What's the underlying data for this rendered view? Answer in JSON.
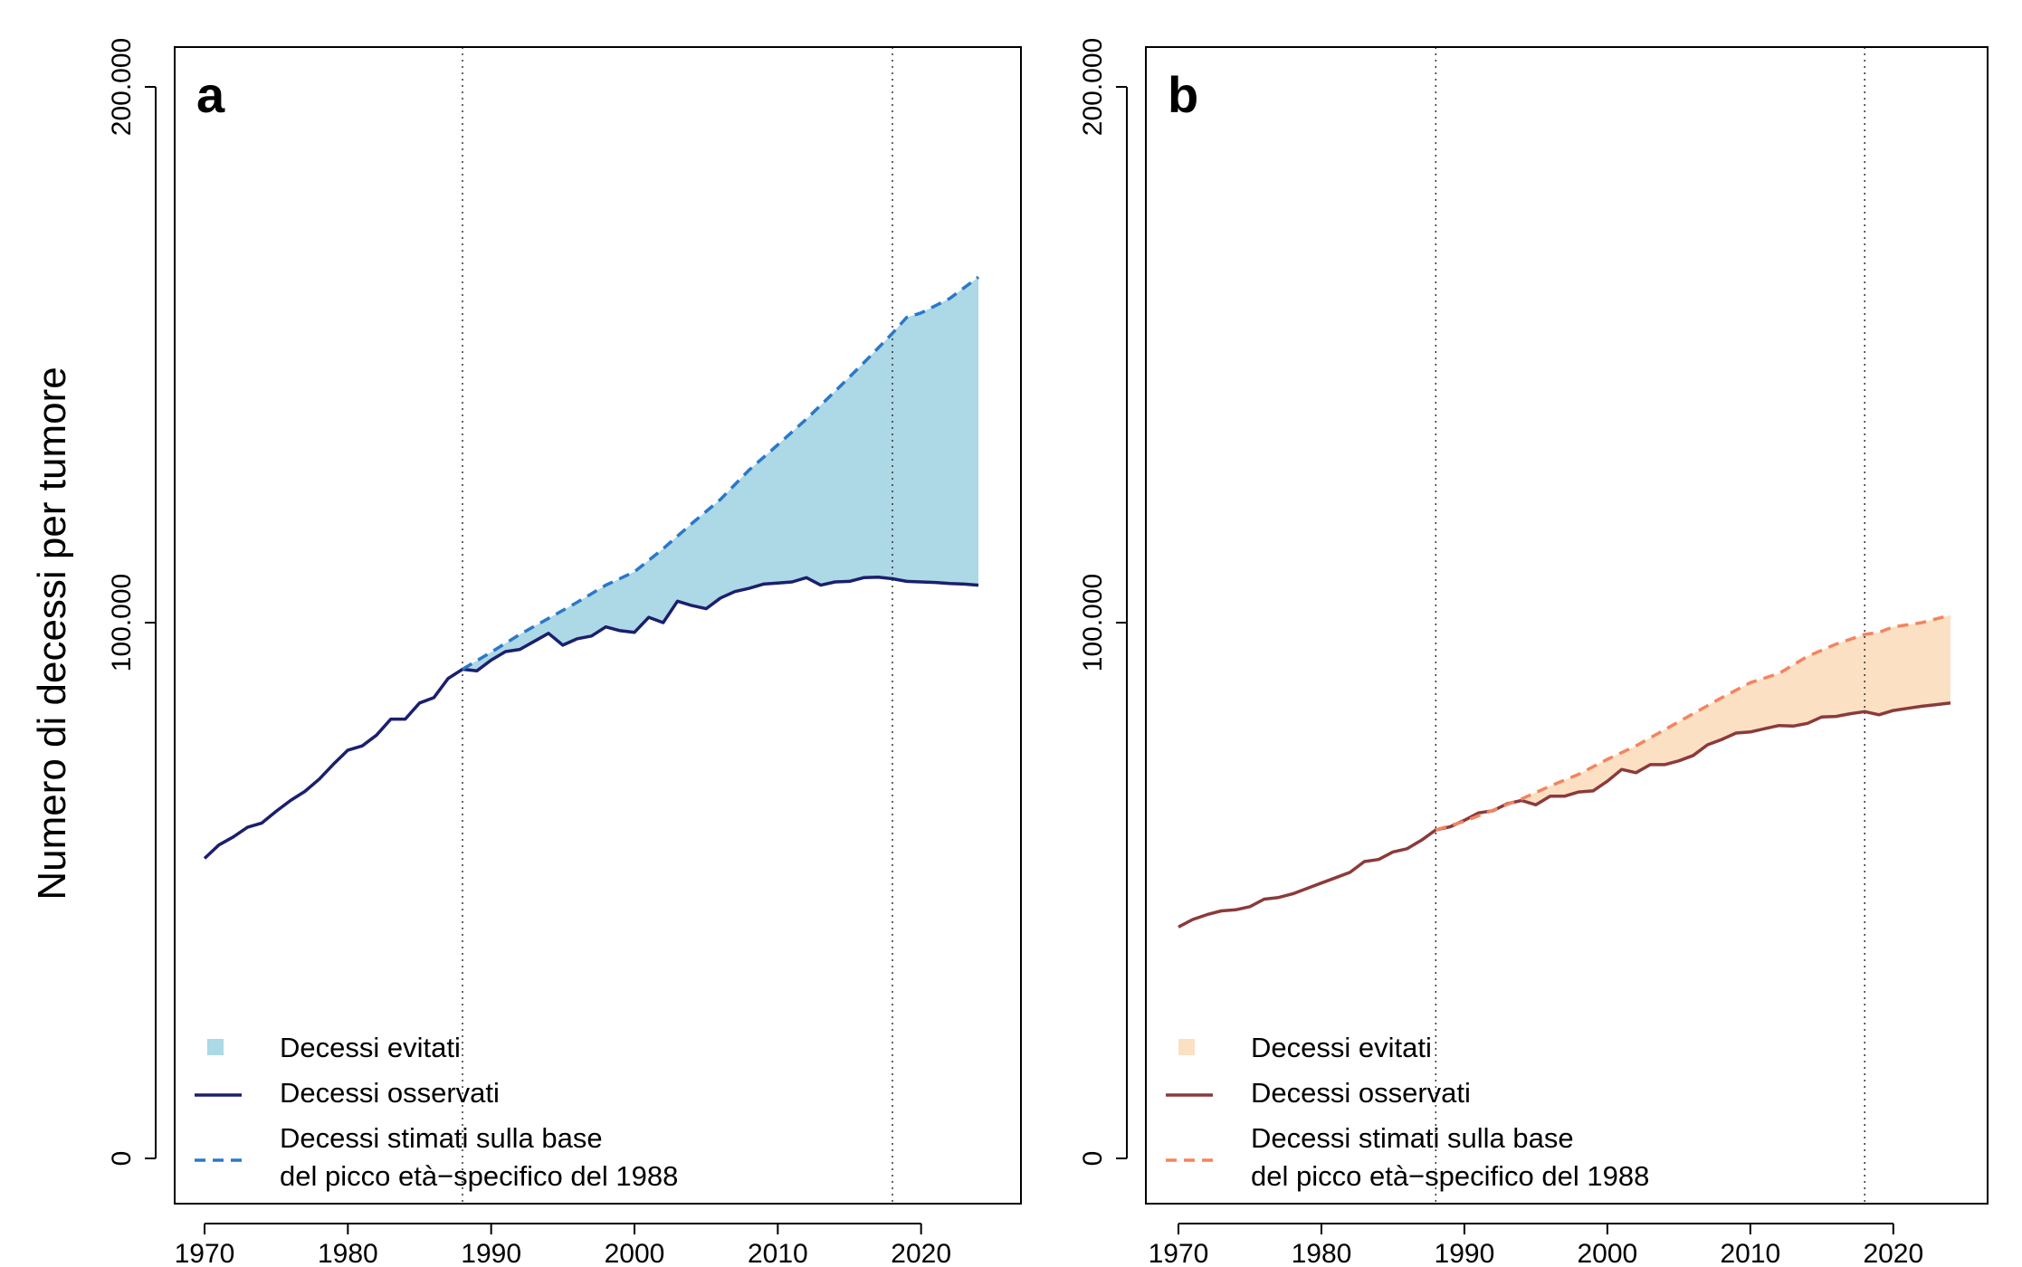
{
  "figure": {
    "ylabel": "Numero di decessi per tumore"
  },
  "chart_data": [
    {
      "panel": "a",
      "type": "line",
      "xlim": [
        1970,
        2024
      ],
      "ylim": [
        0,
        200000
      ],
      "xticks": [
        1970,
        1980,
        1990,
        2000,
        2010,
        2020
      ],
      "xtick_labels": [
        "1970",
        "1980",
        "1990",
        "2000",
        "2010",
        "2020"
      ],
      "yticks": [
        0,
        100000,
        200000
      ],
      "ytick_labels": [
        "0",
        "100.000",
        "200.000"
      ],
      "vlines": [
        1988,
        2018
      ],
      "colors": {
        "observed": "#1b1f6e",
        "estimated": "#2a78c8",
        "fill": "#add8e6"
      },
      "series": [
        {
          "name": "Decessi osservati",
          "style": "solid",
          "x": [
            1970,
            1971,
            1972,
            1973,
            1974,
            1975,
            1976,
            1977,
            1978,
            1979,
            1980,
            1981,
            1982,
            1983,
            1984,
            1985,
            1986,
            1987,
            1988,
            1989,
            1990,
            1991,
            1992,
            1993,
            1994,
            1995,
            1996,
            1997,
            1998,
            1999,
            2000,
            2001,
            2002,
            2003,
            2004,
            2005,
            2006,
            2007,
            2008,
            2009,
            2010,
            2011,
            2012,
            2013,
            2014,
            2015,
            2016,
            2017,
            2018,
            2019,
            2020,
            2021,
            2022,
            2023,
            2024
          ],
          "values": [
            56000,
            58500,
            60000,
            61800,
            62600,
            64800,
            66800,
            68500,
            70800,
            73600,
            76200,
            77000,
            79000,
            82000,
            82000,
            85000,
            86000,
            89600,
            91300,
            91000,
            93000,
            94600,
            95000,
            96500,
            98000,
            95800,
            97000,
            97500,
            99200,
            98500,
            98200,
            101000,
            100000,
            104000,
            103200,
            102600,
            104600,
            105800,
            106400,
            107200,
            107400,
            107600,
            108400,
            107000,
            107600,
            107700,
            108400,
            108500,
            108200,
            107700,
            107600,
            107500,
            107300,
            107200,
            107000
          ]
        },
        {
          "name": "Decessi stimati sulla base del picco età−specifico del 1988",
          "style": "dashed",
          "x": [
            1988,
            1990,
            1992,
            1994,
            1996,
            1998,
            2000,
            2002,
            2004,
            2006,
            2008,
            2010,
            2012,
            2014,
            2016,
            2018,
            2019,
            2020,
            2022,
            2024
          ],
          "values": [
            91300,
            94500,
            97800,
            100800,
            103800,
            107000,
            109500,
            113800,
            118500,
            123000,
            128500,
            133200,
            138000,
            143200,
            148500,
            154000,
            157000,
            157800,
            160500,
            164500
          ]
        }
      ],
      "legend": {
        "position": "bottom-left",
        "items": [
          "Decessi evitati",
          "Decessi osservati",
          "Decessi stimati sulla base",
          "del picco età−specifico del 1988"
        ]
      }
    },
    {
      "panel": "b",
      "type": "line",
      "xlim": [
        1970,
        2024
      ],
      "ylim": [
        0,
        200000
      ],
      "xticks": [
        1970,
        1980,
        1990,
        2000,
        2010,
        2020
      ],
      "xtick_labels": [
        "1970",
        "1980",
        "1990",
        "2000",
        "2010",
        "2020"
      ],
      "yticks": [
        0,
        100000,
        200000
      ],
      "ytick_labels": [
        "0",
        "100.000",
        "200.000"
      ],
      "vlines": [
        1988,
        2018
      ],
      "colors": {
        "observed": "#8b3a3a",
        "estimated": "#f4845f",
        "fill": "#fce0c4"
      },
      "series": [
        {
          "name": "Decessi osservati",
          "style": "solid",
          "x": [
            1970,
            1971,
            1972,
            1973,
            1974,
            1975,
            1976,
            1977,
            1978,
            1979,
            1980,
            1981,
            1982,
            1983,
            1984,
            1985,
            1986,
            1987,
            1988,
            1989,
            1990,
            1991,
            1992,
            1993,
            1994,
            1995,
            1996,
            1997,
            1998,
            1999,
            2000,
            2001,
            2002,
            2003,
            2004,
            2005,
            2006,
            2007,
            2008,
            2009,
            2010,
            2011,
            2012,
            2013,
            2014,
            2015,
            2016,
            2017,
            2018,
            2019,
            2020,
            2021,
            2022,
            2023,
            2024
          ],
          "values": [
            43200,
            44600,
            45500,
            46200,
            46400,
            47000,
            48400,
            48700,
            49400,
            50400,
            51400,
            52400,
            53400,
            55400,
            55800,
            57200,
            57800,
            59400,
            61300,
            61900,
            63100,
            64500,
            64900,
            66200,
            66800,
            66000,
            67600,
            67600,
            68400,
            68600,
            70400,
            72600,
            72000,
            73500,
            73500,
            74200,
            75200,
            77200,
            78200,
            79400,
            79600,
            80200,
            80800,
            80700,
            81200,
            82400,
            82500,
            83000,
            83400,
            82800,
            83600,
            84000,
            84400,
            84700,
            85000
          ]
        },
        {
          "name": "Decessi stimati sulla base del picco età−specifico del 1988",
          "style": "dashed",
          "x": [
            1988,
            1990,
            1992,
            1994,
            1996,
            1998,
            2000,
            2002,
            2004,
            2006,
            2008,
            2010,
            2012,
            2014,
            2016,
            2018,
            2019,
            2020,
            2022,
            2024
          ],
          "values": [
            61300,
            62900,
            65000,
            67100,
            69500,
            71700,
            74500,
            77000,
            80000,
            83000,
            86000,
            88800,
            90500,
            93700,
            96000,
            97800,
            98200,
            99200,
            100000,
            101400
          ]
        }
      ],
      "legend": {
        "position": "bottom-left",
        "items": [
          "Decessi evitati",
          "Decessi osservati",
          "Decessi stimati sulla base",
          "del picco età−specifico del 1988"
        ]
      }
    }
  ]
}
